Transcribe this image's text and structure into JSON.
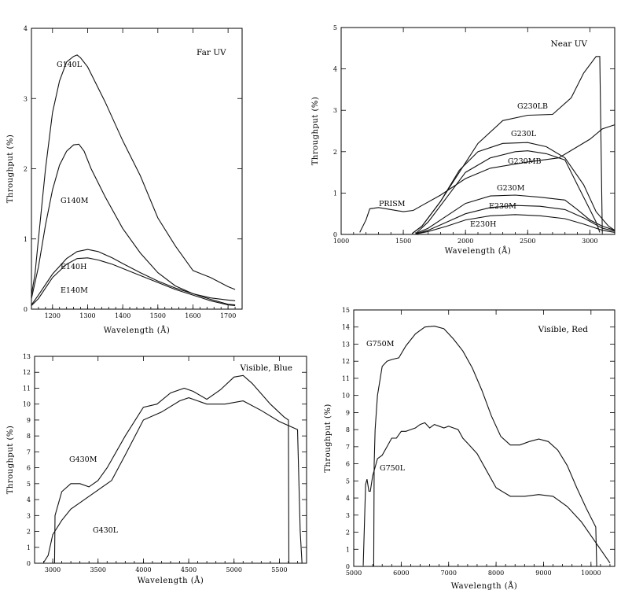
{
  "chart_data": [
    {
      "type": "line",
      "title": "Far UV",
      "xlabel": "Wavelength (Å)",
      "ylabel": "Throughput (%)",
      "xlim": [
        1140,
        1740
      ],
      "ylim": [
        0,
        4
      ],
      "xticks": [
        "1200",
        "1300",
        "1400",
        "1500",
        "1600",
        "1700"
      ],
      "yticks": [
        "0",
        "1",
        "2",
        "3",
        "4"
      ],
      "series": [
        {
          "name": "G140L",
          "x": [
            1140,
            1150,
            1160,
            1180,
            1200,
            1220,
            1240,
            1260,
            1270,
            1280,
            1300,
            1320,
            1350,
            1400,
            1450,
            1500,
            1550,
            1600,
            1650,
            1700,
            1720
          ],
          "y": [
            0.2,
            0.5,
            1.0,
            2.0,
            2.8,
            3.25,
            3.52,
            3.6,
            3.62,
            3.58,
            3.45,
            3.25,
            2.95,
            2.4,
            1.9,
            1.3,
            0.9,
            0.55,
            0.45,
            0.32,
            0.28
          ]
        },
        {
          "name": "G140M",
          "x": [
            1140,
            1160,
            1180,
            1200,
            1220,
            1240,
            1260,
            1275,
            1290,
            1310,
            1350,
            1400,
            1450,
            1500,
            1550,
            1600,
            1650,
            1700,
            1720
          ],
          "y": [
            0.15,
            0.6,
            1.2,
            1.7,
            2.05,
            2.25,
            2.34,
            2.35,
            2.25,
            2.0,
            1.6,
            1.15,
            0.8,
            0.52,
            0.33,
            0.22,
            0.16,
            0.13,
            0.12
          ]
        },
        {
          "name": "E140H",
          "x": [
            1140,
            1160,
            1200,
            1240,
            1270,
            1300,
            1330,
            1370,
            1400,
            1450,
            1500,
            1550,
            1600,
            1650,
            1700,
            1720
          ],
          "y": [
            0.06,
            0.2,
            0.5,
            0.72,
            0.82,
            0.85,
            0.82,
            0.73,
            0.65,
            0.52,
            0.4,
            0.3,
            0.22,
            0.14,
            0.07,
            0.06
          ]
        },
        {
          "name": "E140M",
          "x": [
            1140,
            1160,
            1200,
            1240,
            1270,
            1300,
            1330,
            1370,
            1400,
            1450,
            1500,
            1550,
            1600,
            1650,
            1700,
            1720
          ],
          "y": [
            0.05,
            0.15,
            0.45,
            0.64,
            0.72,
            0.73,
            0.7,
            0.64,
            0.58,
            0.48,
            0.38,
            0.28,
            0.2,
            0.12,
            0.06,
            0.05
          ]
        }
      ]
    },
    {
      "type": "line",
      "title": "Near UV",
      "xlabel": "Wavelength (Å)",
      "ylabel": "Throughput (%)",
      "xlim": [
        1000,
        3200
      ],
      "ylim": [
        0,
        5
      ],
      "xticks": [
        "1000",
        "1500",
        "2000",
        "2500",
        "3000"
      ],
      "yticks": [
        "0",
        "1",
        "2",
        "3",
        "4",
        "5"
      ],
      "series": [
        {
          "name": "PRISM",
          "x": [
            1150,
            1200,
            1230,
            1300,
            1400,
            1500,
            1580,
            1650,
            1800,
            2000,
            2200,
            2500,
            2750,
            3000,
            3100,
            3200
          ],
          "y": [
            0.05,
            0.35,
            0.62,
            0.65,
            0.6,
            0.55,
            0.58,
            0.7,
            0.95,
            1.35,
            1.6,
            1.75,
            1.85,
            2.3,
            2.55,
            2.65
          ]
        },
        {
          "name": "G230LB",
          "x": [
            1570,
            1650,
            1800,
            1950,
            2100,
            2300,
            2500,
            2700,
            2850,
            2950,
            3050,
            3080,
            3100
          ],
          "y": [
            0.02,
            0.2,
            0.8,
            1.5,
            2.2,
            2.75,
            2.88,
            2.9,
            3.3,
            3.9,
            4.3,
            4.3,
            0.05
          ]
        },
        {
          "name": "G230L",
          "x": [
            1570,
            1650,
            1800,
            1950,
            2100,
            2300,
            2500,
            2650,
            2800,
            2950,
            3050,
            3150,
            3200
          ],
          "y": [
            0.02,
            0.2,
            0.8,
            1.55,
            2.0,
            2.2,
            2.22,
            2.12,
            1.85,
            1.2,
            0.55,
            0.2,
            0.1
          ]
        },
        {
          "name": "G230MB",
          "x": [
            1600,
            1700,
            1850,
            2000,
            2200,
            2400,
            2500,
            2650,
            2800,
            2900,
            3000,
            3050,
            3080
          ],
          "y": [
            0.02,
            0.3,
            0.9,
            1.5,
            1.85,
            2.0,
            2.02,
            1.95,
            1.8,
            1.2,
            0.6,
            0.3,
            0.05
          ]
        },
        {
          "name": "G230M",
          "x": [
            1600,
            1700,
            1850,
            2000,
            2200,
            2400,
            2600,
            2800,
            2900,
            3000,
            3100,
            3200
          ],
          "y": [
            0.02,
            0.15,
            0.45,
            0.75,
            0.93,
            0.95,
            0.9,
            0.83,
            0.6,
            0.35,
            0.2,
            0.1
          ]
        },
        {
          "name": "E230M",
          "x": [
            1600,
            1700,
            1850,
            2000,
            2200,
            2400,
            2600,
            2800,
            2950,
            3100,
            3200
          ],
          "y": [
            0.01,
            0.1,
            0.3,
            0.5,
            0.65,
            0.7,
            0.68,
            0.6,
            0.4,
            0.15,
            0.08
          ]
        },
        {
          "name": "E230H",
          "x": [
            1600,
            1700,
            1850,
            2000,
            2200,
            2400,
            2600,
            2800,
            2950,
            3100,
            3200
          ],
          "y": [
            0.01,
            0.07,
            0.2,
            0.35,
            0.45,
            0.48,
            0.45,
            0.38,
            0.25,
            0.1,
            0.05
          ]
        }
      ]
    },
    {
      "type": "line",
      "title": "Visible, Blue",
      "xlabel": "Wavelength (Å)",
      "ylabel": "Throughput (%)",
      "xlim": [
        2800,
        5800
      ],
      "ylim": [
        0,
        13
      ],
      "xticks": [
        "3000",
        "3500",
        "4000",
        "4500",
        "5000",
        "5500"
      ],
      "yticks": [
        "0",
        "1",
        "2",
        "3",
        "4",
        "5",
        "6",
        "7",
        "8",
        "9",
        "10",
        "11",
        "12",
        "13"
      ],
      "series": [
        {
          "name": "G430M",
          "x": [
            3020,
            3025,
            3100,
            3200,
            3300,
            3400,
            3500,
            3600,
            3800,
            4000,
            4150,
            4300,
            4450,
            4550,
            4700,
            4850,
            5000,
            5100,
            5200,
            5400,
            5550,
            5600,
            5605
          ],
          "y": [
            0,
            3.0,
            4.5,
            5.0,
            5.0,
            4.8,
            5.2,
            6.0,
            8.0,
            9.8,
            10.0,
            10.7,
            11.0,
            10.8,
            10.3,
            10.9,
            11.7,
            11.8,
            11.3,
            10.0,
            9.2,
            9.0,
            0
          ]
        },
        {
          "name": "G430L",
          "x": [
            2900,
            2950,
            3000,
            3100,
            3200,
            3350,
            3500,
            3650,
            3800,
            4000,
            4200,
            4400,
            4500,
            4700,
            4900,
            5100,
            5300,
            5500,
            5700,
            5730,
            5750
          ],
          "y": [
            0.05,
            0.5,
            1.8,
            2.7,
            3.4,
            4.0,
            4.6,
            5.2,
            6.8,
            9.0,
            9.5,
            10.2,
            10.4,
            10.0,
            10.0,
            10.2,
            9.6,
            8.9,
            8.4,
            2,
            0
          ]
        }
      ]
    },
    {
      "type": "line",
      "title": "Visible, Red",
      "xlabel": "Wavelength (Å)",
      "ylabel": "Throughput (%)",
      "xlim": [
        5000,
        10500
      ],
      "ylim": [
        0,
        15
      ],
      "xticks": [
        "5000",
        "6000",
        "7000",
        "8000",
        "9000",
        "10000"
      ],
      "yticks": [
        "0",
        "1",
        "2",
        "3",
        "4",
        "5",
        "6",
        "7",
        "8",
        "9",
        "10",
        "11",
        "12",
        "13",
        "14",
        "15"
      ],
      "series": [
        {
          "name": "G750M",
          "x": [
            5420,
            5430,
            5450,
            5500,
            5600,
            5700,
            5800,
            5950,
            6100,
            6300,
            6500,
            6700,
            6900,
            7100,
            7300,
            7500,
            7700,
            7900,
            8100,
            8300,
            8500,
            8700,
            8900,
            9100,
            9300,
            9500,
            9700,
            9900,
            10100,
            10120
          ],
          "y": [
            0,
            6.0,
            8.0,
            10.0,
            11.7,
            12.0,
            12.1,
            12.2,
            12.9,
            13.6,
            14.0,
            14.05,
            13.9,
            13.3,
            12.6,
            11.6,
            10.3,
            8.8,
            7.6,
            7.1,
            7.1,
            7.3,
            7.45,
            7.3,
            6.8,
            5.9,
            4.6,
            3.4,
            2.3,
            0
          ]
        },
        {
          "name": "G750L",
          "x": [
            5200,
            5250,
            5280,
            5320,
            5350,
            5400,
            5450,
            5500,
            5600,
            5700,
            5800,
            5900,
            6000,
            6100,
            6200,
            6300,
            6400,
            6500,
            6600,
            6700,
            6800,
            6900,
            7000,
            7100,
            7200,
            7300,
            7400,
            7600,
            7800,
            8000,
            8300,
            8600,
            8900,
            9200,
            9500,
            9800,
            10000,
            10200,
            10400
          ],
          "y": [
            0.1,
            4.8,
            5.1,
            4.4,
            4.4,
            5.3,
            5.8,
            6.3,
            6.5,
            7.0,
            7.5,
            7.5,
            7.9,
            7.9,
            8.0,
            8.1,
            8.3,
            8.4,
            8.1,
            8.3,
            8.2,
            8.1,
            8.2,
            8.1,
            8.0,
            7.5,
            7.2,
            6.6,
            5.6,
            4.6,
            4.1,
            4.1,
            4.2,
            4.1,
            3.5,
            2.6,
            1.8,
            1.0,
            0.2
          ]
        }
      ]
    }
  ]
}
